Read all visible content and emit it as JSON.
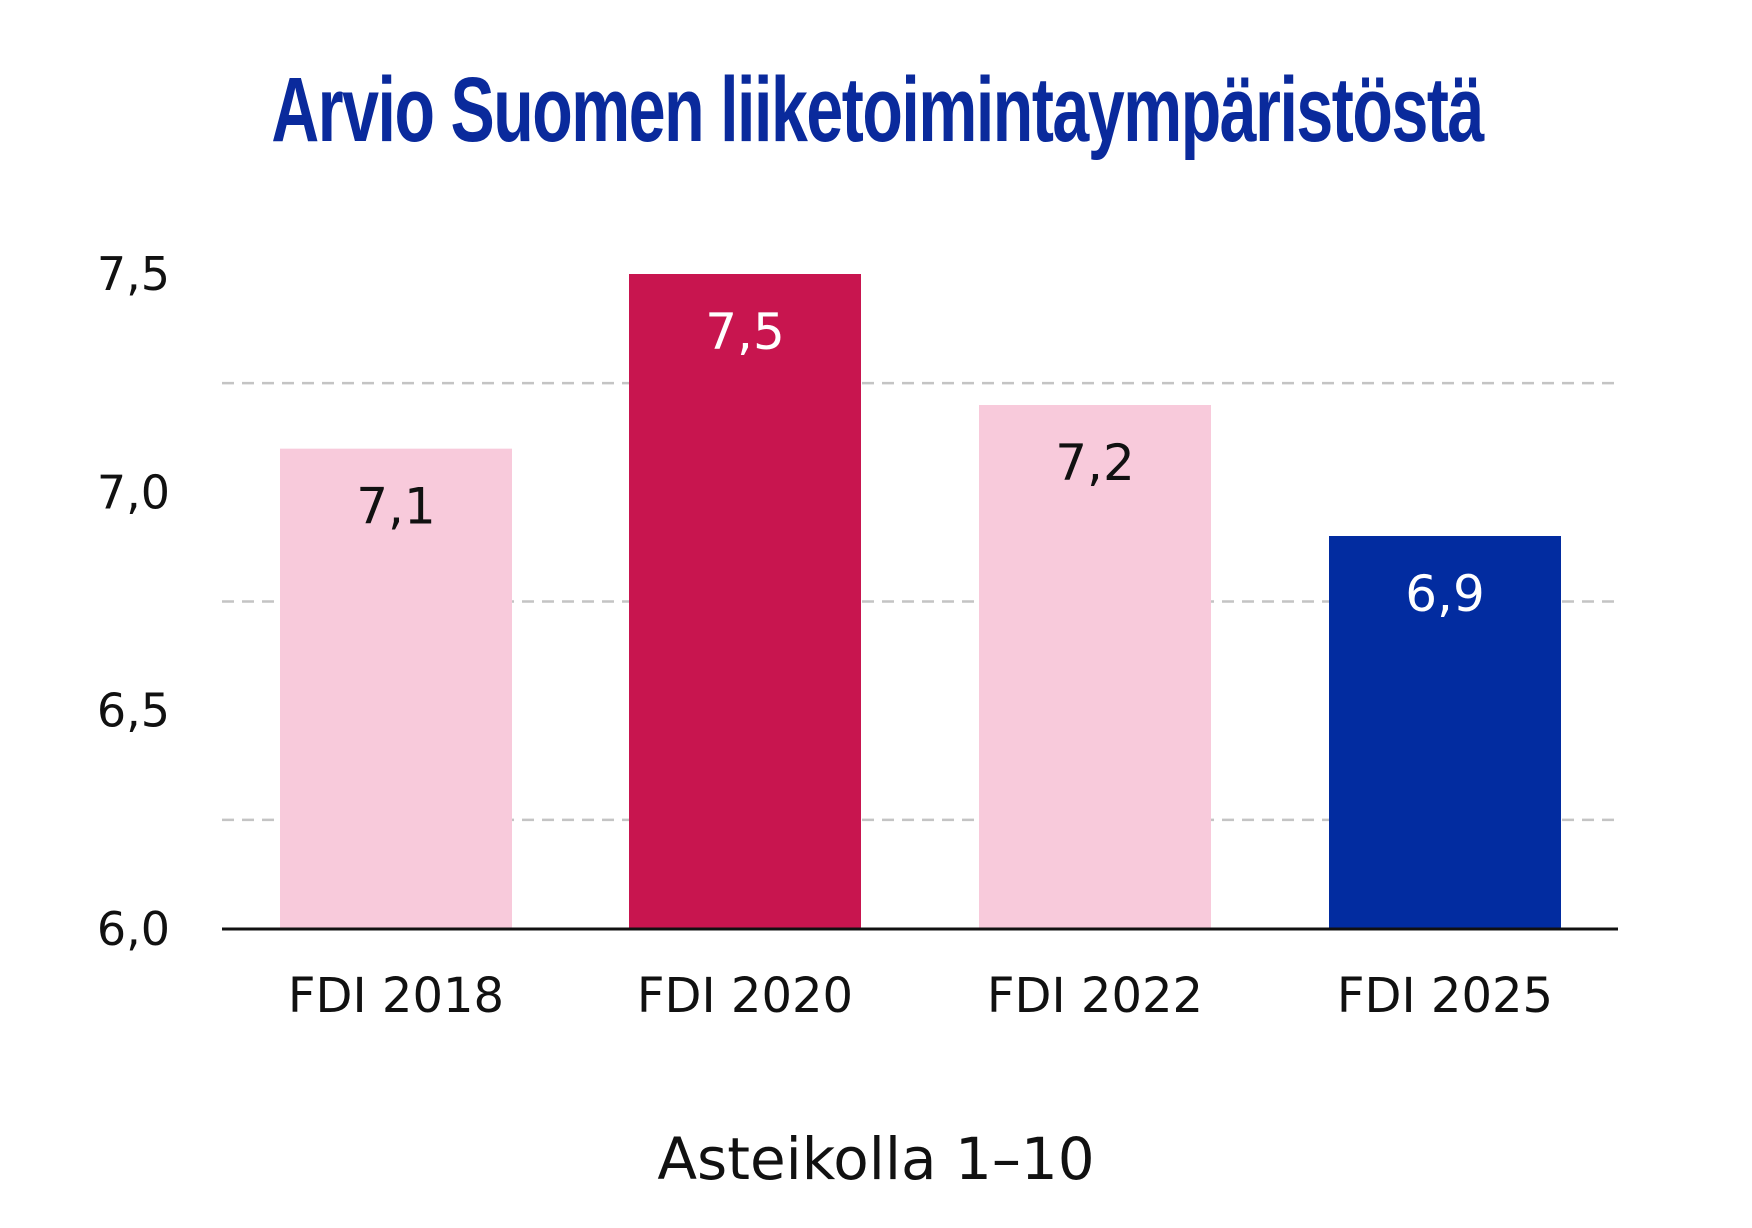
{
  "chart_data": {
    "type": "bar",
    "title": "Arvio Suomen liiketoimintaympäristöstä",
    "xlabel": "Asteikolla 1–10",
    "ylabel": "",
    "categories": [
      "FDI 2018",
      "FDI  2020",
      "FDI 2022",
      "FDI 2025"
    ],
    "values": [
      7.1,
      7.5,
      7.2,
      6.9
    ],
    "data_labels": [
      "7,1",
      "7,5",
      "7,2",
      "6,9"
    ],
    "ylim": [
      6.0,
      7.5
    ],
    "yticks": [
      6.0,
      6.5,
      7.0,
      7.5
    ],
    "ytick_labels": [
      "6,0",
      "6,5",
      "7,0",
      "7,5"
    ],
    "gridlines": [
      6.25,
      6.75,
      7.25
    ],
    "grid": "dashed horizontal",
    "bar_colors": [
      "#f8cadb",
      "#c8154f",
      "#f8cadb",
      "#022ca0"
    ],
    "label_colors": [
      "#111111",
      "#ffffff",
      "#111111",
      "#ffffff"
    ]
  }
}
